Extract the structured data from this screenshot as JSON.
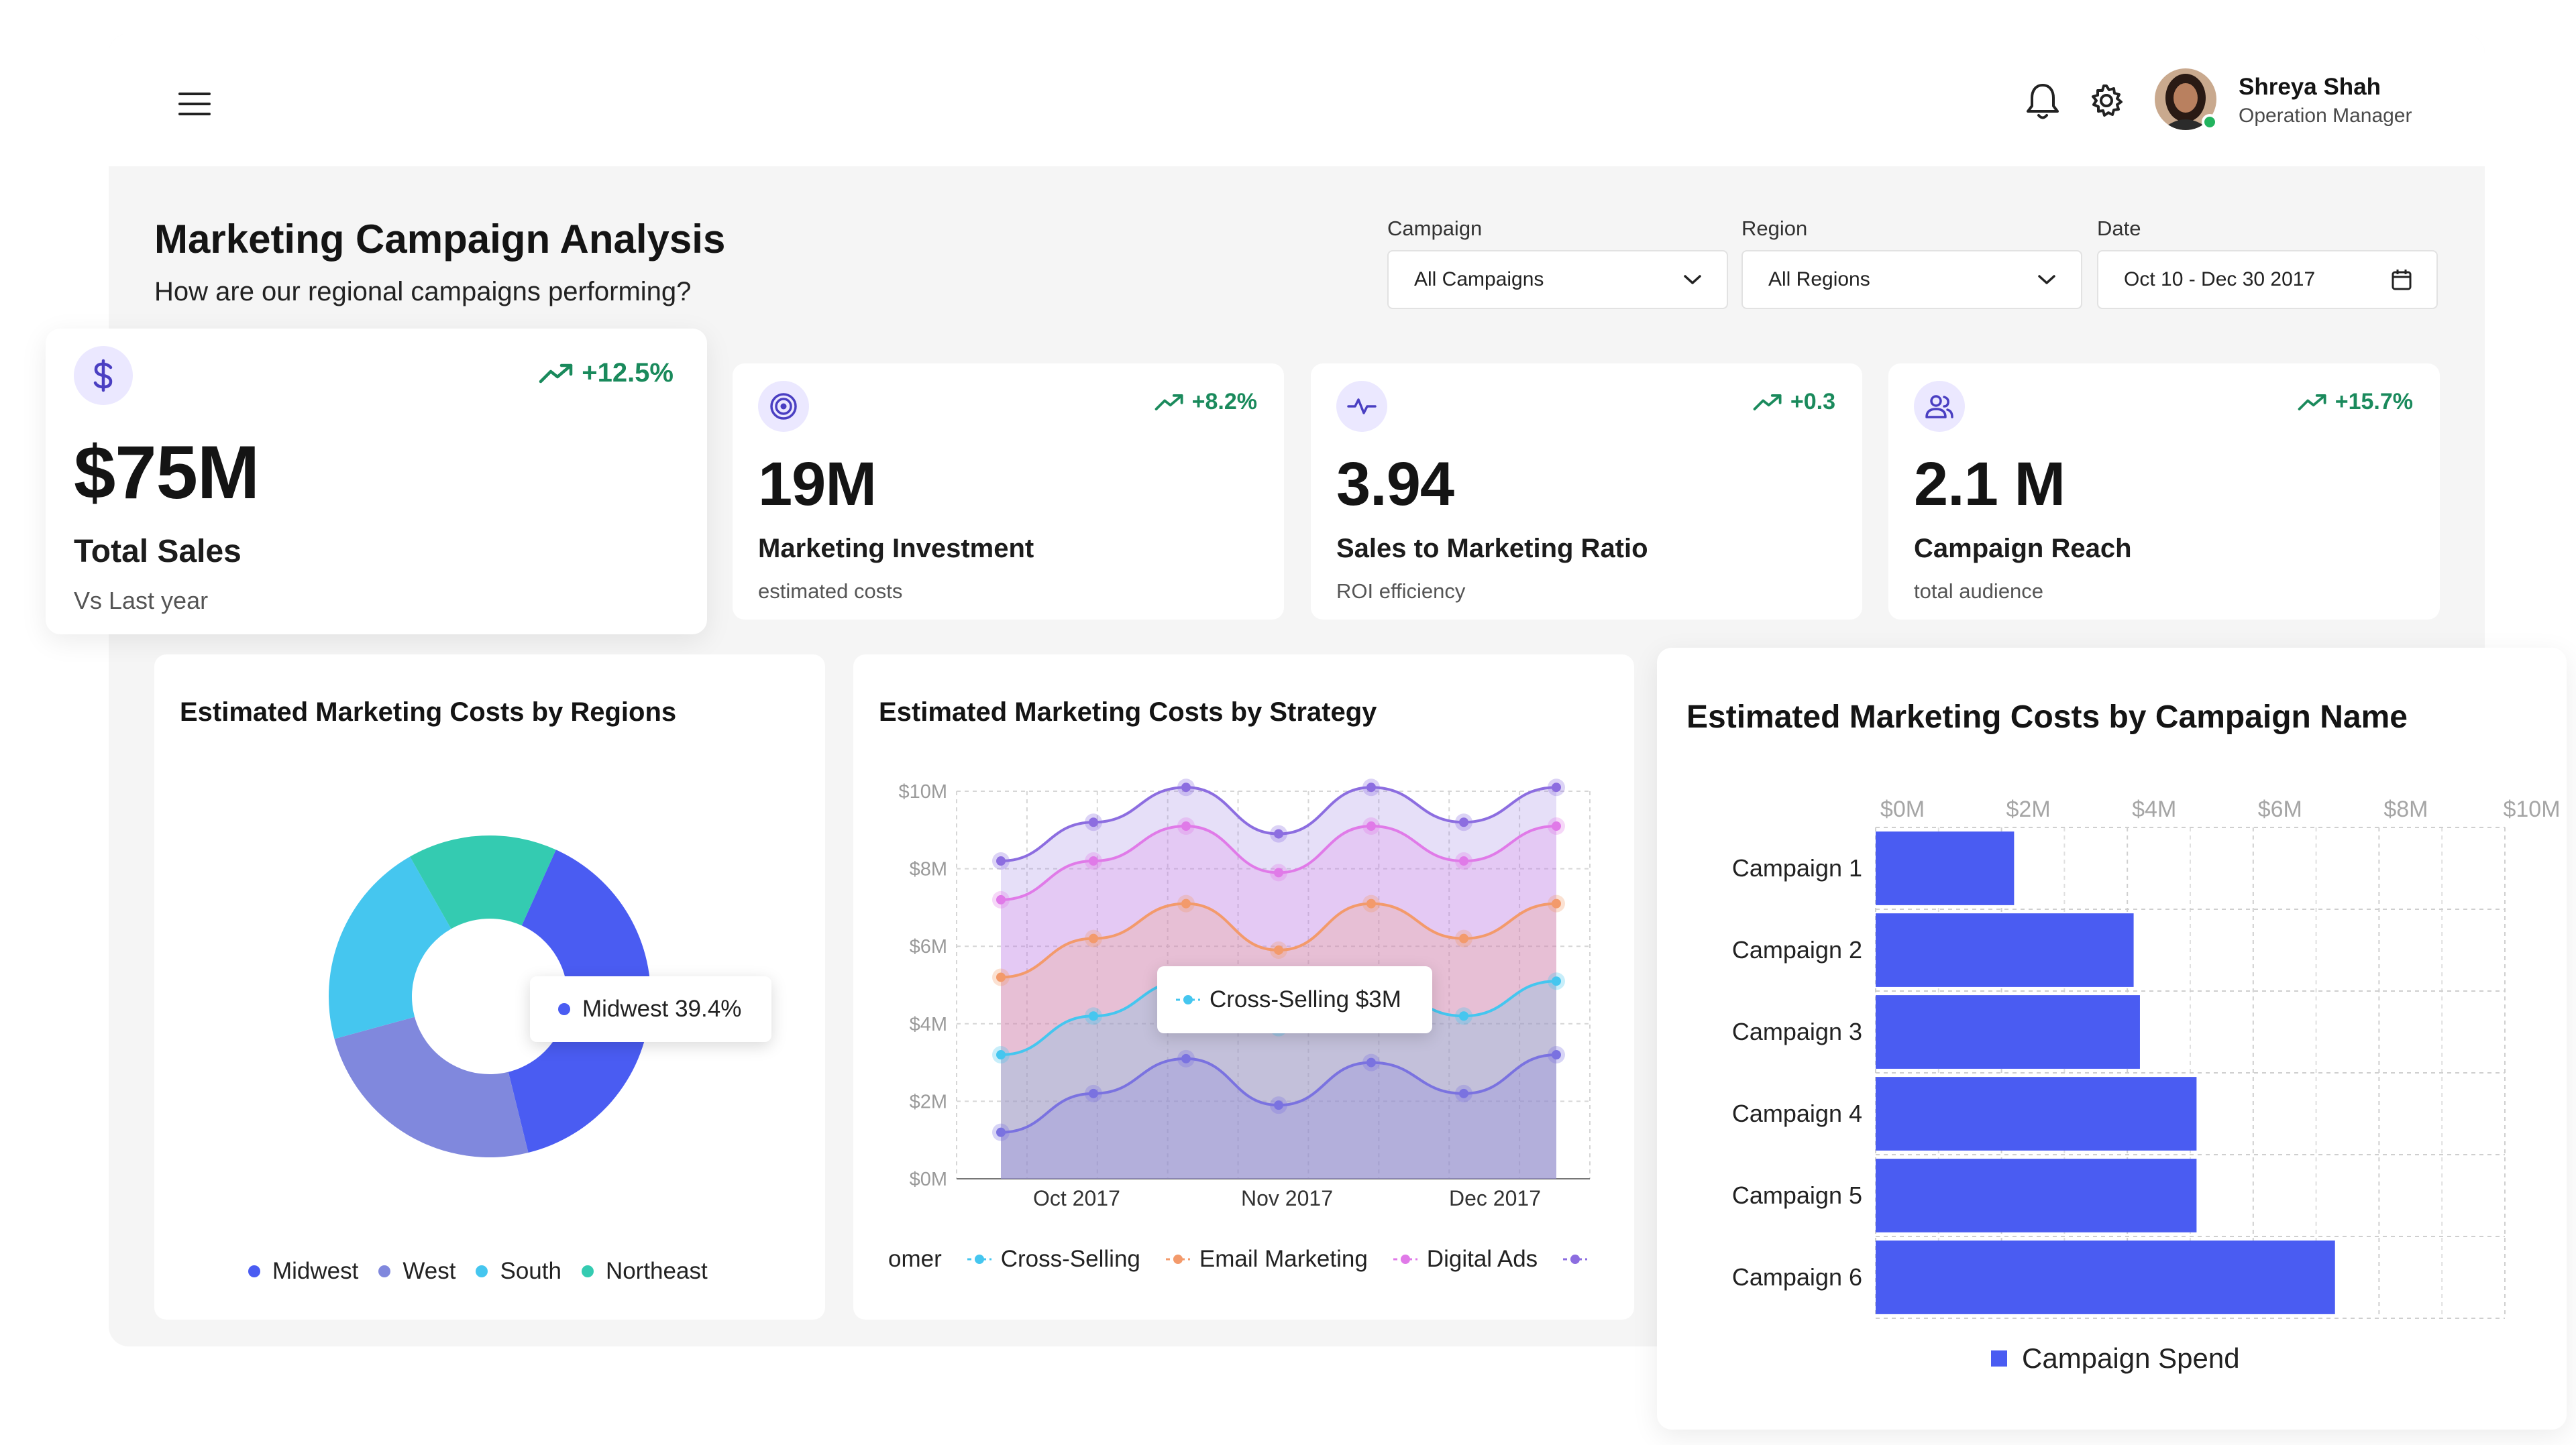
{
  "user": {
    "name": "Shreya Shah",
    "role": "Operation Manager",
    "status": "online"
  },
  "header": {
    "title": "Marketing Campaign Analysis",
    "subtitle": "How are our regional campaigns performing?"
  },
  "filters": {
    "campaign": {
      "label": "Campaign",
      "value": "All Campaigns"
    },
    "region": {
      "label": "Region",
      "value": "All Regions"
    },
    "date": {
      "label": "Date",
      "value": "Oct 10 - Dec 30 2017"
    }
  },
  "kpis": [
    {
      "icon": "dollar-icon",
      "delta": "+12.5%",
      "value": "$75M",
      "label": "Total Sales",
      "sub": "Vs Last year"
    },
    {
      "icon": "target-icon",
      "delta": "+8.2%",
      "value": "19M",
      "label": "Marketing Investment",
      "sub": "estimated costs"
    },
    {
      "icon": "pulse-icon",
      "delta": "+0.3",
      "value": "3.94",
      "label": "Sales to Marketing Ratio",
      "sub": "ROI efficiency"
    },
    {
      "icon": "users-icon",
      "delta": "+15.7%",
      "value": "2.1 M",
      "label": "Campaign Reach",
      "sub": "total audience"
    }
  ],
  "colors": {
    "accent": "#4a5cf2",
    "positive": "#1a8a5c",
    "icon_bg": "#ebe8ff"
  },
  "donut": {
    "tooltip": "Midwest 39.4%"
  },
  "area": {
    "tooltip": "Cross-Selling $3M",
    "legend_partial": "omer"
  },
  "chart_data": [
    {
      "type": "pie",
      "title": "Estimated Marketing Costs by Regions",
      "labels": [
        "Midwest",
        "West",
        "South",
        "Northeast"
      ],
      "values": [
        39.4,
        24.6,
        21.0,
        15.0
      ],
      "colors": [
        "#4a5cf2",
        "#8088dd",
        "#45c6ef",
        "#34cbb1"
      ],
      "legend": "bottom"
    },
    {
      "type": "area",
      "title": "Estimated Marketing Costs by Strategy",
      "x_ticks": [
        "Oct 2017",
        "Nov 2017",
        "Dec 2017"
      ],
      "y_ticks": [
        "$0M",
        "$2M",
        "$4M",
        "$6M",
        "$8M",
        "$10M"
      ],
      "ylim": [
        0,
        10
      ],
      "points": 7,
      "series": [
        {
          "name": "",
          "color": "#7a72e0",
          "values": [
            1.2,
            2.2,
            3.1,
            1.9,
            3.0,
            2.2,
            3.2
          ]
        },
        {
          "name": "Cross-Selling",
          "color": "#45c6ef",
          "values": [
            3.2,
            4.2,
            5.1,
            3.9,
            5.0,
            4.2,
            5.1
          ]
        },
        {
          "name": "Email Marketing",
          "color": "#f39a6b",
          "values": [
            5.2,
            6.2,
            7.1,
            5.9,
            7.1,
            6.2,
            7.1
          ]
        },
        {
          "name": "Digital Ads",
          "color": "#e07ae8",
          "values": [
            7.2,
            8.2,
            9.1,
            7.9,
            9.1,
            8.2,
            9.1
          ]
        },
        {
          "name": "",
          "color": "#8c6de0",
          "values": [
            8.2,
            9.2,
            10.1,
            8.9,
            10.1,
            9.2,
            10.1
          ]
        }
      ],
      "legend": "bottom",
      "grid": true
    },
    {
      "type": "bar",
      "orientation": "horizontal",
      "title": "Estimated Marketing Costs by Campaign Name",
      "categories": [
        "Campaign 1",
        "Campaign 2",
        "Campaign 3",
        "Campaign 4",
        "Campaign 5",
        "Campaign 6"
      ],
      "series": [
        {
          "name": "Campaign Spend",
          "values": [
            2.2,
            4.1,
            4.2,
            5.1,
            5.1,
            7.3
          ],
          "color": "#4a5cf2"
        }
      ],
      "x_ticks": [
        "$0M",
        "$2M",
        "$4M",
        "$6M",
        "$8M",
        "$10M"
      ],
      "xlim": [
        0,
        10
      ],
      "legend": "bottom",
      "grid": true
    }
  ]
}
